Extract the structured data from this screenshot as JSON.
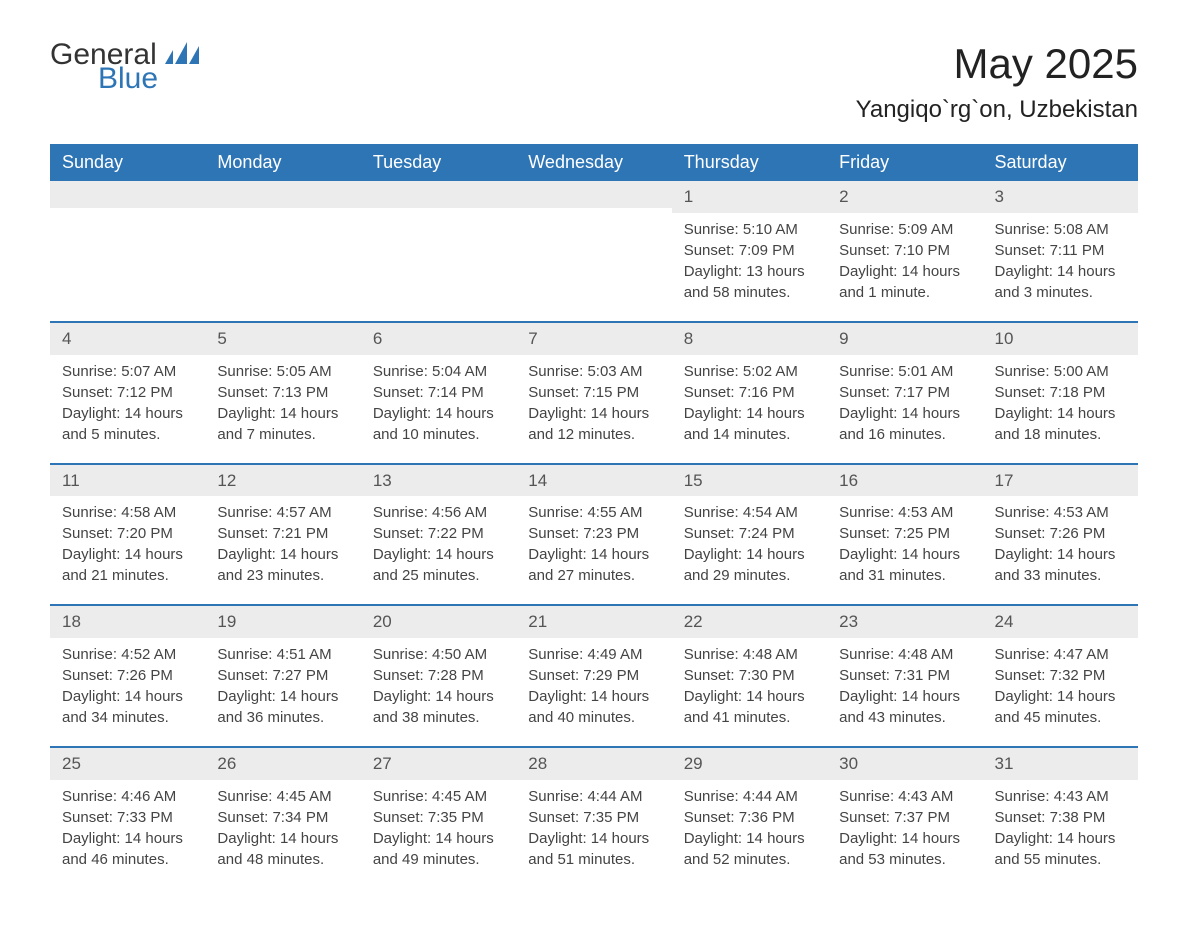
{
  "logo": {
    "general": "General",
    "blue": "Blue"
  },
  "title": {
    "month": "May 2025",
    "location": "Yangiqo`rg`on, Uzbekistan"
  },
  "colors": {
    "accent": "#2e75b6",
    "header_bg": "#2e75b6",
    "header_text": "#ffffff",
    "daynum_bg": "#ececec",
    "text": "#444444"
  },
  "weekdays": [
    "Sunday",
    "Monday",
    "Tuesday",
    "Wednesday",
    "Thursday",
    "Friday",
    "Saturday"
  ],
  "labels": {
    "sunrise": "Sunrise: ",
    "sunset": "Sunset: ",
    "daylight": "Daylight: "
  },
  "weeks": [
    [
      null,
      null,
      null,
      null,
      {
        "d": "1",
        "sr": "5:10 AM",
        "ss": "7:09 PM",
        "dl": "13 hours and 58 minutes."
      },
      {
        "d": "2",
        "sr": "5:09 AM",
        "ss": "7:10 PM",
        "dl": "14 hours and 1 minute."
      },
      {
        "d": "3",
        "sr": "5:08 AM",
        "ss": "7:11 PM",
        "dl": "14 hours and 3 minutes."
      }
    ],
    [
      {
        "d": "4",
        "sr": "5:07 AM",
        "ss": "7:12 PM",
        "dl": "14 hours and 5 minutes."
      },
      {
        "d": "5",
        "sr": "5:05 AM",
        "ss": "7:13 PM",
        "dl": "14 hours and 7 minutes."
      },
      {
        "d": "6",
        "sr": "5:04 AM",
        "ss": "7:14 PM",
        "dl": "14 hours and 10 minutes."
      },
      {
        "d": "7",
        "sr": "5:03 AM",
        "ss": "7:15 PM",
        "dl": "14 hours and 12 minutes."
      },
      {
        "d": "8",
        "sr": "5:02 AM",
        "ss": "7:16 PM",
        "dl": "14 hours and 14 minutes."
      },
      {
        "d": "9",
        "sr": "5:01 AM",
        "ss": "7:17 PM",
        "dl": "14 hours and 16 minutes."
      },
      {
        "d": "10",
        "sr": "5:00 AM",
        "ss": "7:18 PM",
        "dl": "14 hours and 18 minutes."
      }
    ],
    [
      {
        "d": "11",
        "sr": "4:58 AM",
        "ss": "7:20 PM",
        "dl": "14 hours and 21 minutes."
      },
      {
        "d": "12",
        "sr": "4:57 AM",
        "ss": "7:21 PM",
        "dl": "14 hours and 23 minutes."
      },
      {
        "d": "13",
        "sr": "4:56 AM",
        "ss": "7:22 PM",
        "dl": "14 hours and 25 minutes."
      },
      {
        "d": "14",
        "sr": "4:55 AM",
        "ss": "7:23 PM",
        "dl": "14 hours and 27 minutes."
      },
      {
        "d": "15",
        "sr": "4:54 AM",
        "ss": "7:24 PM",
        "dl": "14 hours and 29 minutes."
      },
      {
        "d": "16",
        "sr": "4:53 AM",
        "ss": "7:25 PM",
        "dl": "14 hours and 31 minutes."
      },
      {
        "d": "17",
        "sr": "4:53 AM",
        "ss": "7:26 PM",
        "dl": "14 hours and 33 minutes."
      }
    ],
    [
      {
        "d": "18",
        "sr": "4:52 AM",
        "ss": "7:26 PM",
        "dl": "14 hours and 34 minutes."
      },
      {
        "d": "19",
        "sr": "4:51 AM",
        "ss": "7:27 PM",
        "dl": "14 hours and 36 minutes."
      },
      {
        "d": "20",
        "sr": "4:50 AM",
        "ss": "7:28 PM",
        "dl": "14 hours and 38 minutes."
      },
      {
        "d": "21",
        "sr": "4:49 AM",
        "ss": "7:29 PM",
        "dl": "14 hours and 40 minutes."
      },
      {
        "d": "22",
        "sr": "4:48 AM",
        "ss": "7:30 PM",
        "dl": "14 hours and 41 minutes."
      },
      {
        "d": "23",
        "sr": "4:48 AM",
        "ss": "7:31 PM",
        "dl": "14 hours and 43 minutes."
      },
      {
        "d": "24",
        "sr": "4:47 AM",
        "ss": "7:32 PM",
        "dl": "14 hours and 45 minutes."
      }
    ],
    [
      {
        "d": "25",
        "sr": "4:46 AM",
        "ss": "7:33 PM",
        "dl": "14 hours and 46 minutes."
      },
      {
        "d": "26",
        "sr": "4:45 AM",
        "ss": "7:34 PM",
        "dl": "14 hours and 48 minutes."
      },
      {
        "d": "27",
        "sr": "4:45 AM",
        "ss": "7:35 PM",
        "dl": "14 hours and 49 minutes."
      },
      {
        "d": "28",
        "sr": "4:44 AM",
        "ss": "7:35 PM",
        "dl": "14 hours and 51 minutes."
      },
      {
        "d": "29",
        "sr": "4:44 AM",
        "ss": "7:36 PM",
        "dl": "14 hours and 52 minutes."
      },
      {
        "d": "30",
        "sr": "4:43 AM",
        "ss": "7:37 PM",
        "dl": "14 hours and 53 minutes."
      },
      {
        "d": "31",
        "sr": "4:43 AM",
        "ss": "7:38 PM",
        "dl": "14 hours and 55 minutes."
      }
    ]
  ]
}
